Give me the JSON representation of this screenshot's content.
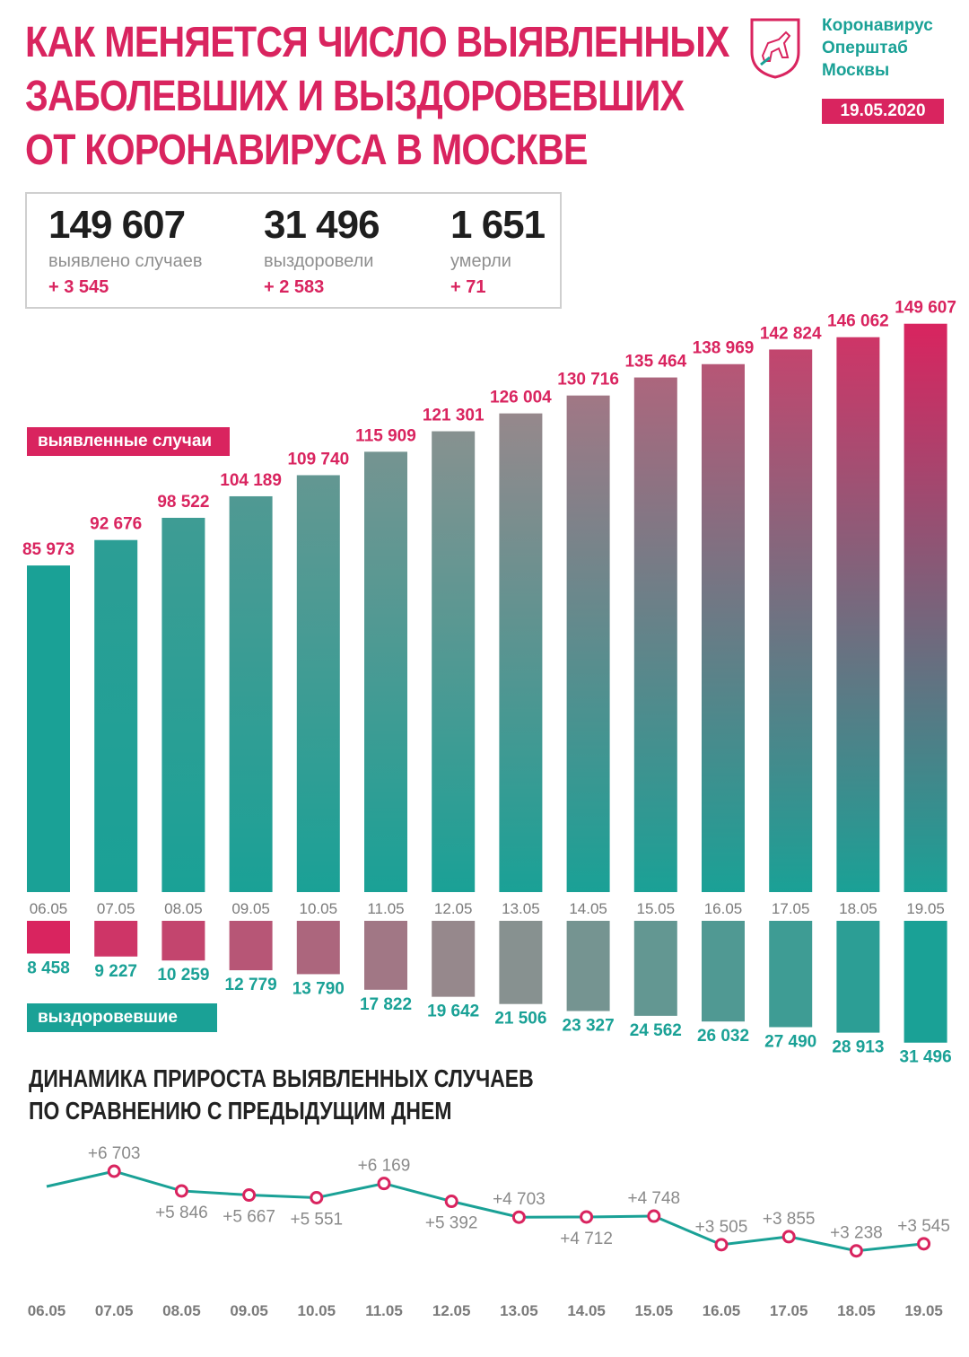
{
  "header": {
    "title_lines": [
      "КАК МЕНЯЕТСЯ ЧИСЛО ВЫЯВЛЕННЫХ",
      "ЗАБОЛЕВШИХ И ВЫЗДОРОВЕВШИХ",
      "ОТ КОРОНАВИРУСА В МОСКВЕ"
    ],
    "org_lines": [
      "Коронавирус",
      "Оперштаб",
      "Москвы"
    ],
    "date": "19.05.2020",
    "logo_icon": "moscow-coat-of-arms-icon"
  },
  "summary": {
    "cases": {
      "value": "149 607",
      "label": "выявлено случаев",
      "delta": "+ 3 545"
    },
    "recovered": {
      "value": "31 496",
      "label": "выздоровели",
      "delta": "+ 2 583"
    },
    "deaths": {
      "value": "1 651",
      "label": "умерли",
      "delta": "+ 71"
    }
  },
  "labels": {
    "cases_series": "выявленные случаи",
    "recovered_series": "выздоровевшие",
    "growth_title_lines": [
      "ДИНАМИКА ПРИРОСТА ВЫЯВЛЕННЫХ СЛУЧАЕВ",
      "ПО СРАВНЕНИЮ С ПРЕДЫДУЩИМ ДНЕМ"
    ]
  },
  "colors": {
    "accent_pink": "#d9245f",
    "accent_teal": "#1aa196",
    "mid_gray": "#909090"
  },
  "chart_data": [
    {
      "type": "bar",
      "categories": [
        "06.05",
        "07.05",
        "08.05",
        "09.05",
        "10.05",
        "11.05",
        "12.05",
        "13.05",
        "14.05",
        "15.05",
        "16.05",
        "17.05",
        "18.05",
        "19.05"
      ],
      "series": [
        {
          "name": "выявленные случаи",
          "values": [
            85973,
            92676,
            98522,
            104189,
            109740,
            115909,
            121301,
            126004,
            130716,
            135464,
            138969,
            142824,
            146062,
            149607
          ],
          "labels": [
            "85 973",
            "92 676",
            "98 522",
            "104 189",
            "109 740",
            "115 909",
            "121 301",
            "126 004",
            "130 716",
            "135 464",
            "138 969",
            "142 824",
            "146 062",
            "149 607"
          ]
        },
        {
          "name": "выздоровевшие",
          "values": [
            8458,
            9227,
            10259,
            12779,
            13790,
            17822,
            19642,
            21506,
            23327,
            24562,
            26032,
            27490,
            28913,
            31496
          ],
          "labels": [
            "8 458",
            "9 227",
            "10 259",
            "12 779",
            "13 790",
            "17 822",
            "19 642",
            "21 506",
            "23 327",
            "24 562",
            "26 032",
            "27 490",
            "28 913",
            "31 496"
          ]
        }
      ]
    },
    {
      "type": "line",
      "categories": [
        "06.05",
        "07.05",
        "08.05",
        "09.05",
        "10.05",
        "11.05",
        "12.05",
        "13.05",
        "14.05",
        "15.05",
        "16.05",
        "17.05",
        "18.05",
        "19.05"
      ],
      "series": [
        {
          "values": [
            6039,
            6703,
            5846,
            5667,
            5551,
            6169,
            5392,
            4703,
            4712,
            4748,
            3505,
            3855,
            3238,
            3545
          ],
          "labels": [
            null,
            "+6 703",
            "+5 846",
            "+5 667",
            "+5 551",
            "+6 169",
            "+5 392",
            "+4 703",
            "+4 712",
            "+4 748",
            "+3 505",
            "+3 855",
            "+3 238",
            "+3 545"
          ]
        }
      ]
    }
  ]
}
